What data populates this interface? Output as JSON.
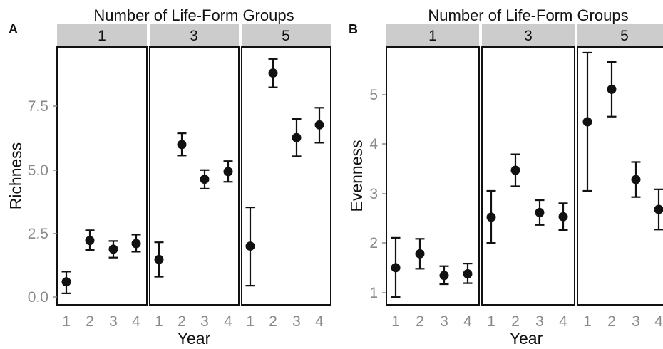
{
  "chart_data": [
    {
      "type": "scatter",
      "panel_label": "A",
      "facet_title": "Number of Life-Form Groups",
      "xlabel": "Year",
      "ylabel": "Richness",
      "x_ticks": [
        "1",
        "2",
        "3",
        "4"
      ],
      "y_ticks": [
        "0.0",
        "2.5",
        "5.0",
        "7.5"
      ],
      "ylim": [
        -0.3,
        9.8
      ],
      "error_bars": true,
      "facets": [
        {
          "label": "1",
          "points": [
            {
              "x": 1,
              "y": 0.6,
              "low": 0.15,
              "high": 1.0
            },
            {
              "x": 2,
              "y": 2.22,
              "low": 1.85,
              "high": 2.62
            },
            {
              "x": 3,
              "y": 1.88,
              "low": 1.55,
              "high": 2.2
            },
            {
              "x": 4,
              "y": 2.1,
              "low": 1.78,
              "high": 2.45
            }
          ]
        },
        {
          "label": "3",
          "points": [
            {
              "x": 1,
              "y": 1.48,
              "low": 0.8,
              "high": 2.15
            },
            {
              "x": 2,
              "y": 5.98,
              "low": 5.55,
              "high": 6.42
            },
            {
              "x": 3,
              "y": 4.62,
              "low": 4.25,
              "high": 4.98
            },
            {
              "x": 4,
              "y": 4.92,
              "low": 4.52,
              "high": 5.33
            }
          ]
        },
        {
          "label": "5",
          "points": [
            {
              "x": 1,
              "y": 2.0,
              "low": 0.45,
              "high": 3.52
            },
            {
              "x": 2,
              "y": 8.78,
              "low": 8.22,
              "high": 9.33
            },
            {
              "x": 3,
              "y": 6.25,
              "low": 5.52,
              "high": 6.98
            },
            {
              "x": 4,
              "y": 6.75,
              "low": 6.05,
              "high": 7.42
            }
          ]
        }
      ]
    },
    {
      "type": "scatter",
      "panel_label": "B",
      "facet_title": "Number of Life-Form Groups",
      "xlabel": "Year",
      "ylabel": "Evenness",
      "x_ticks": [
        "1",
        "2",
        "3",
        "4"
      ],
      "y_ticks": [
        "1",
        "2",
        "3",
        "4",
        "5"
      ],
      "ylim": [
        0.85,
        5.85
      ],
      "error_bars": true,
      "facets": [
        {
          "label": "1",
          "points": [
            {
              "x": 1,
              "y": 1.57,
              "low": 1.0,
              "high": 2.15
            },
            {
              "x": 2,
              "y": 1.84,
              "low": 1.55,
              "high": 2.13
            },
            {
              "x": 3,
              "y": 1.42,
              "low": 1.25,
              "high": 1.6
            },
            {
              "x": 4,
              "y": 1.45,
              "low": 1.27,
              "high": 1.65
            }
          ]
        },
        {
          "label": "3",
          "points": [
            {
              "x": 1,
              "y": 2.55,
              "low": 2.05,
              "high": 3.06
            },
            {
              "x": 2,
              "y": 3.46,
              "low": 3.15,
              "high": 3.77
            },
            {
              "x": 3,
              "y": 2.64,
              "low": 2.4,
              "high": 2.88
            },
            {
              "x": 4,
              "y": 2.56,
              "low": 2.3,
              "high": 2.82
            }
          ]
        },
        {
          "label": "5",
          "points": [
            {
              "x": 1,
              "y": 4.4,
              "low": 3.06,
              "high": 5.74
            },
            {
              "x": 2,
              "y": 5.03,
              "low": 4.5,
              "high": 5.56
            },
            {
              "x": 3,
              "y": 3.28,
              "low": 2.94,
              "high": 3.62
            },
            {
              "x": 4,
              "y": 2.7,
              "low": 2.31,
              "high": 3.09
            }
          ]
        }
      ]
    }
  ]
}
